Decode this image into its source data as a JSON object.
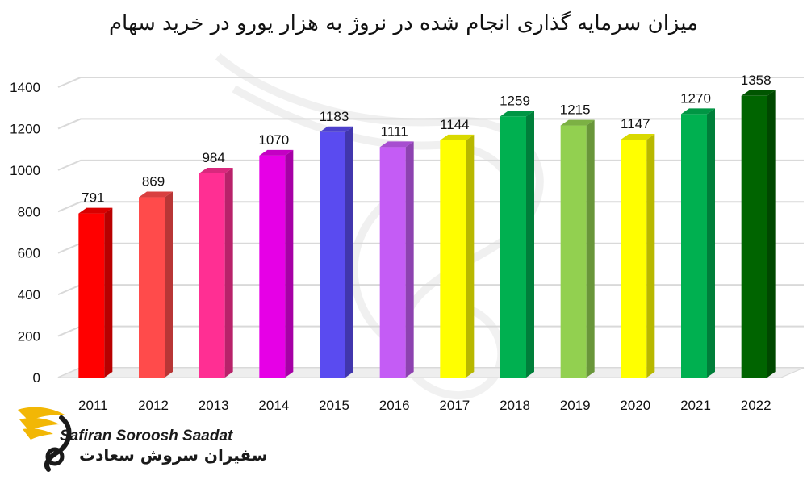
{
  "title": "میزان سرمایه گذاری انجام شده در نروژ به هزار یورو در خرید سهام",
  "chart_data": {
    "type": "bar",
    "categories": [
      "2011",
      "2012",
      "2013",
      "2014",
      "2015",
      "2016",
      "2017",
      "2018",
      "2019",
      "2020",
      "2021",
      "2022"
    ],
    "values": [
      791,
      869,
      984,
      1070,
      1183,
      1111,
      1144,
      1259,
      1215,
      1147,
      1270,
      1358
    ],
    "bar_colors": [
      "#ff0000",
      "#ff4b4b",
      "#ff2f93",
      "#e600e6",
      "#5a4bf0",
      "#c45cf5",
      "#ffff00",
      "#00b050",
      "#92d050",
      "#ffff00",
      "#00b050",
      "#006400"
    ],
    "y_ticks": [
      0,
      200,
      400,
      600,
      800,
      1000,
      1200,
      1400
    ],
    "ylim": [
      0,
      1400
    ],
    "xlabel": "",
    "ylabel": "",
    "grid": true,
    "legend": "none",
    "style": "3d-columns"
  },
  "logo": {
    "name_en": "Safiran Soroosh Saadat",
    "name_fa": "سفیران سروش سعادت",
    "icon": "golden-bird-wing-icon",
    "accent": "#f2b705"
  }
}
